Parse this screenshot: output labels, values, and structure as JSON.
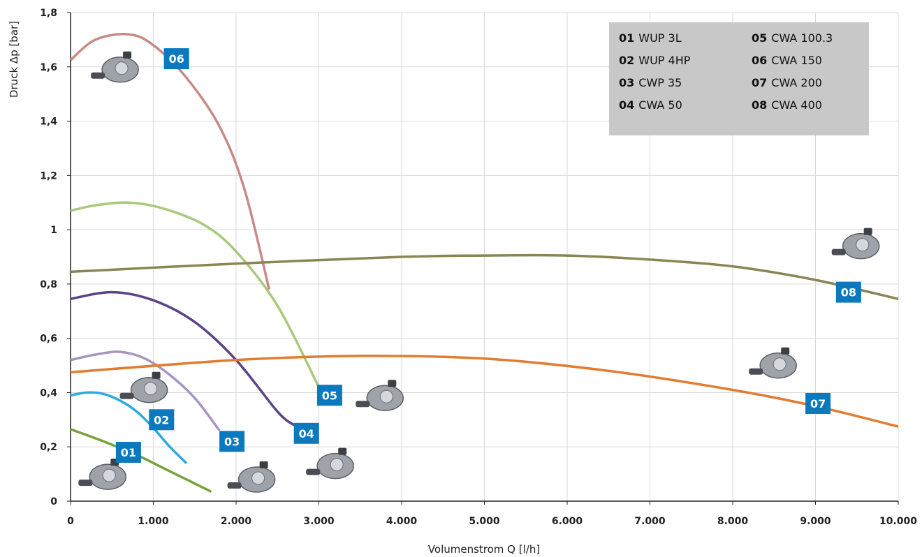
{
  "chart_data": {
    "type": "line",
    "xlabel": "Volumenstrom Q [l/h]",
    "ylabel": "Druck Δp [bar]",
    "xlim": [
      0,
      10000
    ],
    "ylim": [
      0,
      1.8
    ],
    "x_ticks": [
      "0",
      "1.000",
      "2.000",
      "3.000",
      "4.000",
      "5.000",
      "6.000",
      "7.000",
      "8.000",
      "9.000",
      "10.000"
    ],
    "y_ticks": [
      "0",
      "0,2",
      "0,4",
      "0,6",
      "0,8",
      "1",
      "1,2",
      "1,4",
      "1,6",
      "1,8"
    ],
    "grid": true,
    "legend_position": "top-right",
    "series": [
      {
        "id": "01",
        "name": "WUP 3L",
        "color": "#77a23c",
        "x": [
          0,
          400,
          800,
          1200,
          1700
        ],
        "y": [
          0.265,
          0.22,
          0.17,
          0.11,
          0.035
        ]
      },
      {
        "id": "02",
        "name": "WUP 4HP",
        "color": "#2aaae2",
        "x": [
          0,
          200,
          400,
          600,
          800,
          1000,
          1200,
          1400
        ],
        "y": [
          0.39,
          0.4,
          0.395,
          0.37,
          0.33,
          0.27,
          0.2,
          0.14
        ]
      },
      {
        "id": "03",
        "name": "CWP 35",
        "color": "#a794c4",
        "x": [
          0,
          300,
          600,
          900,
          1200,
          1500,
          1800
        ],
        "y": [
          0.52,
          0.54,
          0.55,
          0.525,
          0.465,
          0.38,
          0.26
        ]
      },
      {
        "id": "04",
        "name": "CWA 50",
        "color": "#5b4387",
        "x": [
          0,
          500,
          1000,
          1500,
          2000,
          2500,
          2700
        ],
        "y": [
          0.745,
          0.77,
          0.74,
          0.66,
          0.52,
          0.33,
          0.28
        ]
      },
      {
        "id": "05",
        "name": "CWA 100.3",
        "color": "#a9c97b",
        "x": [
          0,
          300,
          700,
          1100,
          1600,
          2000,
          2500,
          3000
        ],
        "y": [
          1.07,
          1.09,
          1.1,
          1.08,
          1.02,
          0.92,
          0.72,
          0.42
        ]
      },
      {
        "id": "06",
        "name": "CWA 150",
        "color": "#c88a86",
        "x": [
          0,
          300,
          700,
          1000,
          1400,
          1800,
          2100,
          2400
        ],
        "y": [
          1.625,
          1.7,
          1.72,
          1.68,
          1.56,
          1.38,
          1.15,
          0.78
        ]
      },
      {
        "id": "07",
        "name": "CWA 200",
        "color": "#e07d30",
        "x": [
          0,
          2000,
          3500,
          5000,
          6500,
          8000,
          9000,
          10000
        ],
        "y": [
          0.475,
          0.52,
          0.535,
          0.525,
          0.48,
          0.41,
          0.35,
          0.275
        ]
      },
      {
        "id": "08",
        "name": "CWA 400",
        "color": "#8a8654",
        "x": [
          0,
          2000,
          4000,
          5000,
          6000,
          7000,
          8000,
          9000,
          10000
        ],
        "y": [
          0.845,
          0.875,
          0.9,
          0.905,
          0.905,
          0.89,
          0.865,
          0.815,
          0.745
        ]
      }
    ],
    "labels": [
      {
        "id": "01",
        "x": 700,
        "y": 0.18
      },
      {
        "id": "02",
        "x": 1100,
        "y": 0.3
      },
      {
        "id": "03",
        "x": 1950,
        "y": 0.22
      },
      {
        "id": "04",
        "x": 2850,
        "y": 0.25
      },
      {
        "id": "05",
        "x": 3130,
        "y": 0.39
      },
      {
        "id": "06",
        "x": 1280,
        "y": 1.63
      },
      {
        "id": "07",
        "x": 9030,
        "y": 0.36
      },
      {
        "id": "08",
        "x": 9400,
        "y": 0.77
      }
    ],
    "pumps": [
      {
        "id": "01",
        "x": 450,
        "y": 0.1
      },
      {
        "id": "02",
        "x": 950,
        "y": 0.42
      },
      {
        "id": "03",
        "x": 2250,
        "y": 0.09
      },
      {
        "id": "04",
        "x": 3200,
        "y": 0.14
      },
      {
        "id": "05",
        "x": 3800,
        "y": 0.39
      },
      {
        "id": "06",
        "x": 600,
        "y": 1.6
      },
      {
        "id": "07",
        "x": 8550,
        "y": 0.51
      },
      {
        "id": "08",
        "x": 9550,
        "y": 0.95
      }
    ]
  },
  "colors": {
    "badge": "#0a79be",
    "grid": "#d9d9d9",
    "axis": "#222222",
    "legend_bg": "#c8c8c8"
  }
}
